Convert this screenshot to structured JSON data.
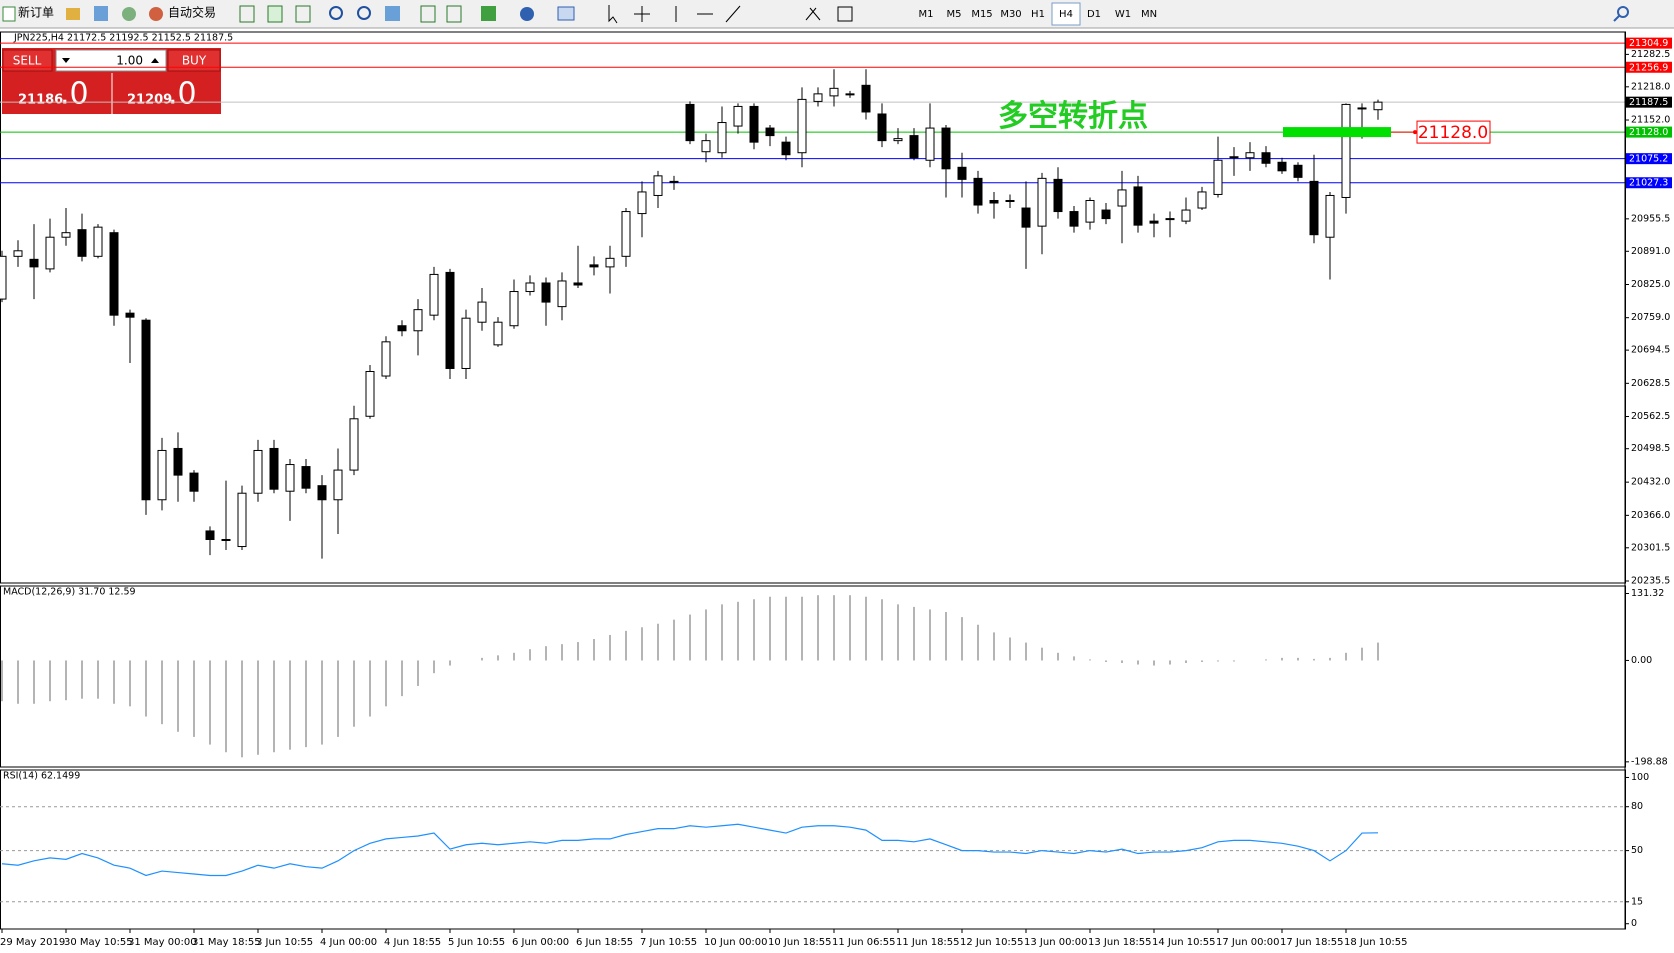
{
  "toolbar": {
    "new_order": "新订单",
    "auto_trading": "自动交易",
    "timeframes": [
      "M1",
      "M5",
      "M15",
      "M30",
      "H1",
      "H4",
      "D1",
      "W1",
      "MN"
    ]
  },
  "trade_panel": {
    "sell": "SELL",
    "buy": "BUY",
    "lot": "1.00",
    "bid_main": "21186",
    "bid_frac": ".0",
    "ask_main": "21209",
    "ask_frac": ".0"
  },
  "chart_data": [
    {
      "type": "candlestick",
      "title": "JPN225,H4  21172.5 21192.5 21152.5 21187.5",
      "up_color": "#ffffff",
      "down_color": "#000000",
      "categories": [
        "29 May 2019",
        null,
        null,
        null,
        "30 May 10:55",
        null,
        null,
        null,
        "31 May 00:00",
        null,
        null,
        null,
        "31 May 18:55",
        null,
        null,
        null,
        "3 Jun 10:55",
        null,
        null,
        null,
        "4 Jun 00:00",
        null,
        null,
        null,
        "4 Jun 18:55",
        null,
        null,
        null,
        "5 Jun 10:55",
        null,
        null,
        null,
        "6 Jun 00:00",
        null,
        null,
        null,
        "6 Jun 18:55",
        null,
        null,
        null,
        "7 Jun 10:55",
        null,
        null,
        null,
        "10 Jun 00:00",
        null,
        null,
        null,
        "10 Jun 18:55",
        null,
        null,
        null,
        "11 Jun 06:55",
        null,
        null,
        null,
        "11 Jun 18:55",
        null,
        null,
        null,
        "12 Jun 10:55",
        null,
        null,
        null,
        "13 Jun 00:00",
        null,
        null,
        null,
        "13 Jun 18:55",
        null,
        null,
        null,
        "14 Jun 10:55",
        null,
        null,
        null,
        "17 Jun 00:00",
        null,
        null,
        null,
        "17 Jun 18:55",
        null,
        null,
        null,
        "18 Jun 10:55",
        null,
        null
      ],
      "open": [
        20796,
        20881,
        20875,
        20856,
        20919,
        20934,
        20881,
        20928,
        20768,
        20754,
        20397,
        20499,
        20450,
        20335,
        20316,
        20304,
        20410,
        20499,
        20414,
        20463,
        20425,
        20397,
        20456,
        20563,
        20643,
        20743,
        20733,
        20764,
        20849,
        20658,
        20750,
        20705,
        20743,
        20811,
        20828,
        20781,
        20828,
        20864,
        20860,
        20881,
        20966,
        21002,
        21030,
        21183,
        21089,
        21087,
        21140,
        21179,
        21136,
        21108,
        21087,
        21189,
        21200,
        21204,
        21221,
        21164,
        21111,
        21121,
        21072,
        21136,
        21058,
        21036,
        20992,
        20992,
        20977,
        20941,
        21034,
        20970,
        20949,
        20973,
        20981,
        21019,
        20951,
        20956,
        20951,
        20977,
        21004,
        21079,
        21077,
        21087,
        21068,
        21062,
        21030,
        20919,
        20998,
        21176,
        21172.5
      ],
      "high": [
        20892,
        20913,
        20945,
        20956,
        20977,
        20966,
        20945,
        20934,
        20775,
        20758,
        20520,
        20531,
        20456,
        20344,
        20435,
        20425,
        20516,
        20516,
        20478,
        20478,
        20446,
        20499,
        20584,
        20665,
        20722,
        20754,
        20796,
        20860,
        20856,
        20775,
        20818,
        20760,
        20835,
        20843,
        20839,
        20849,
        20902,
        20881,
        20902,
        20977,
        21030,
        21051,
        21041,
        21189,
        21125,
        21179,
        21185,
        21185,
        21142,
        21119,
        21217,
        21217,
        21253,
        21210,
        21253,
        21185,
        21136,
        21136,
        21185,
        21142,
        21087,
        21051,
        21009,
        21004,
        21030,
        21047,
        21058,
        20981,
        20998,
        20987,
        21051,
        21041,
        20966,
        20970,
        20998,
        21019,
        21119,
        21098,
        21108,
        21100,
        21077,
        21068,
        21083,
        21009,
        21185,
        21185,
        21192.5
      ],
      "low": [
        20790,
        20860,
        20796,
        20849,
        20902,
        20871,
        20877,
        20743,
        20669,
        20367,
        20376,
        20393,
        20393,
        20287,
        20297,
        20297,
        20393,
        20410,
        20355,
        20410,
        20280,
        20329,
        20446,
        20558,
        20637,
        20722,
        20684,
        20754,
        20637,
        20637,
        20733,
        20701,
        20737,
        20803,
        20743,
        20754,
        20818,
        20843,
        20807,
        20860,
        20919,
        20977,
        21013,
        21104,
        21068,
        21077,
        21125,
        21094,
        21100,
        21072,
        21058,
        21179,
        21179,
        21196,
        21153,
        21098,
        21104,
        21072,
        21058,
        20998,
        20998,
        20966,
        20956,
        20977,
        20856,
        20885,
        20956,
        20928,
        20934,
        20945,
        20907,
        20928,
        20919,
        20919,
        20945,
        20973,
        20998,
        21041,
        21051,
        21058,
        21045,
        21030,
        20907,
        20835,
        20966,
        21115,
        21152.5
      ],
      "close": [
        20881,
        20892,
        20860,
        20919,
        20928,
        20881,
        20939,
        20764,
        20760,
        20397,
        20495,
        20446,
        20414,
        20318,
        20318,
        20410,
        20495,
        20418,
        20467,
        20420,
        20397,
        20456,
        20558,
        20652,
        20711,
        20733,
        20775,
        20845,
        20658,
        20758,
        20790,
        20750,
        20811,
        20828,
        20790,
        20832,
        20824,
        20860,
        20877,
        20970,
        21009,
        21041,
        21030,
        21111,
        21111,
        21147,
        21179,
        21108,
        21121,
        21083,
        21193,
        21204,
        21215,
        21202,
        21168,
        21111,
        21115,
        21077,
        21136,
        21055,
        21034,
        20983,
        20987,
        20990,
        20939,
        21036,
        20970,
        20941,
        20992,
        20956,
        21013,
        20943,
        20947,
        20956,
        20973,
        21009,
        21072,
        21079,
        21087,
        21066,
        21051,
        21038,
        20924,
        21002,
        21183,
        21176,
        21187.5
      ],
      "ylim": [
        20231.5,
        21327
      ],
      "yticks": [
        21282.5,
        {
          "value": 21218,
          "label": "21218.0"
        },
        {
          "value": 21152,
          "label": "21152.0"
        },
        20955.5,
        {
          "value": 20891,
          "label": "20891.0"
        },
        {
          "value": 20825,
          "label": "20825.0"
        },
        {
          "value": 20759,
          "label": "20759.0"
        },
        20694.5,
        20628.5,
        20562.5,
        20498.5,
        {
          "value": 20432,
          "label": "20432.0"
        },
        {
          "value": 20366,
          "label": "20366.0"
        },
        20301.5,
        20235.5
      ],
      "hlines": [
        {
          "value": 21304.9,
          "color": "#ff0000",
          "box_color": "#ff0000"
        },
        {
          "value": 21256.9,
          "color": "#ff0000",
          "box_color": "#ff0000"
        },
        {
          "value": 21187.5,
          "color": "#c0c0c0",
          "box_color": "#000000"
        },
        {
          "value": 21128,
          "label": "21128.0",
          "color": "#00c000",
          "box_color": "#00c000"
        },
        {
          "value": 21075.2,
          "color": "#0000ff",
          "box_color": "#0000ff"
        },
        {
          "value": 21027.3,
          "color": "#0000ff",
          "box_color": "#0000ff"
        }
      ],
      "annotation": {
        "text": "多空转折点",
        "price_label": "21128.0"
      }
    },
    {
      "type": "bar",
      "title": "MACD(12,26,9) 31.70 12.59",
      "color": "#b4b4b4",
      "values": [
        -80,
        -85,
        -85,
        -80,
        -78,
        -75,
        -75,
        -85,
        -90,
        -110,
        -125,
        -140,
        -150,
        -165,
        -180,
        -190,
        -185,
        -180,
        -175,
        -170,
        -165,
        -150,
        -130,
        -110,
        -90,
        -70,
        -50,
        -25,
        -10,
        0,
        5,
        10,
        15,
        22,
        28,
        32,
        36,
        42,
        50,
        58,
        65,
        72,
        80,
        90,
        100,
        110,
        115,
        120,
        125,
        125,
        125,
        128,
        128,
        128,
        125,
        120,
        110,
        105,
        100,
        95,
        85,
        70,
        55,
        45,
        35,
        25,
        15,
        8,
        2,
        -3,
        -5,
        -8,
        -10,
        -8,
        -5,
        -3,
        -2,
        -2,
        0,
        2,
        5,
        5,
        3,
        5,
        15,
        25,
        35
      ],
      "ylim": [
        -209,
        146
      ],
      "yticks": [
        131.32,
        {
          "value": 0,
          "label": "0.00"
        },
        -198.88
      ]
    },
    {
      "type": "line",
      "title": "RSI(14) 62.1499",
      "color": "#1e90ff",
      "values": [
        41,
        40,
        43,
        45,
        44,
        48,
        45,
        40,
        38,
        33,
        36,
        35,
        34,
        33,
        33,
        36,
        40,
        38,
        41,
        39,
        38,
        43,
        50,
        55,
        58,
        59,
        60,
        62,
        51,
        54,
        55,
        54,
        55,
        56,
        55,
        57,
        57,
        58,
        58,
        61,
        63,
        65,
        65,
        67,
        66,
        67,
        68,
        66,
        64,
        62,
        66,
        67,
        67,
        66,
        64,
        57,
        57,
        56,
        58,
        54,
        50,
        50,
        49,
        49,
        48,
        50,
        49,
        48,
        50,
        49,
        51,
        48,
        49,
        49,
        50,
        52,
        56,
        57,
        57,
        56,
        55,
        53,
        50,
        43,
        50,
        62,
        62.1499
      ],
      "ylim": [
        -3.6,
        105.1
      ],
      "yticks": [
        100,
        80,
        50,
        15,
        0
      ],
      "levels": [
        80,
        50,
        15
      ]
    }
  ]
}
